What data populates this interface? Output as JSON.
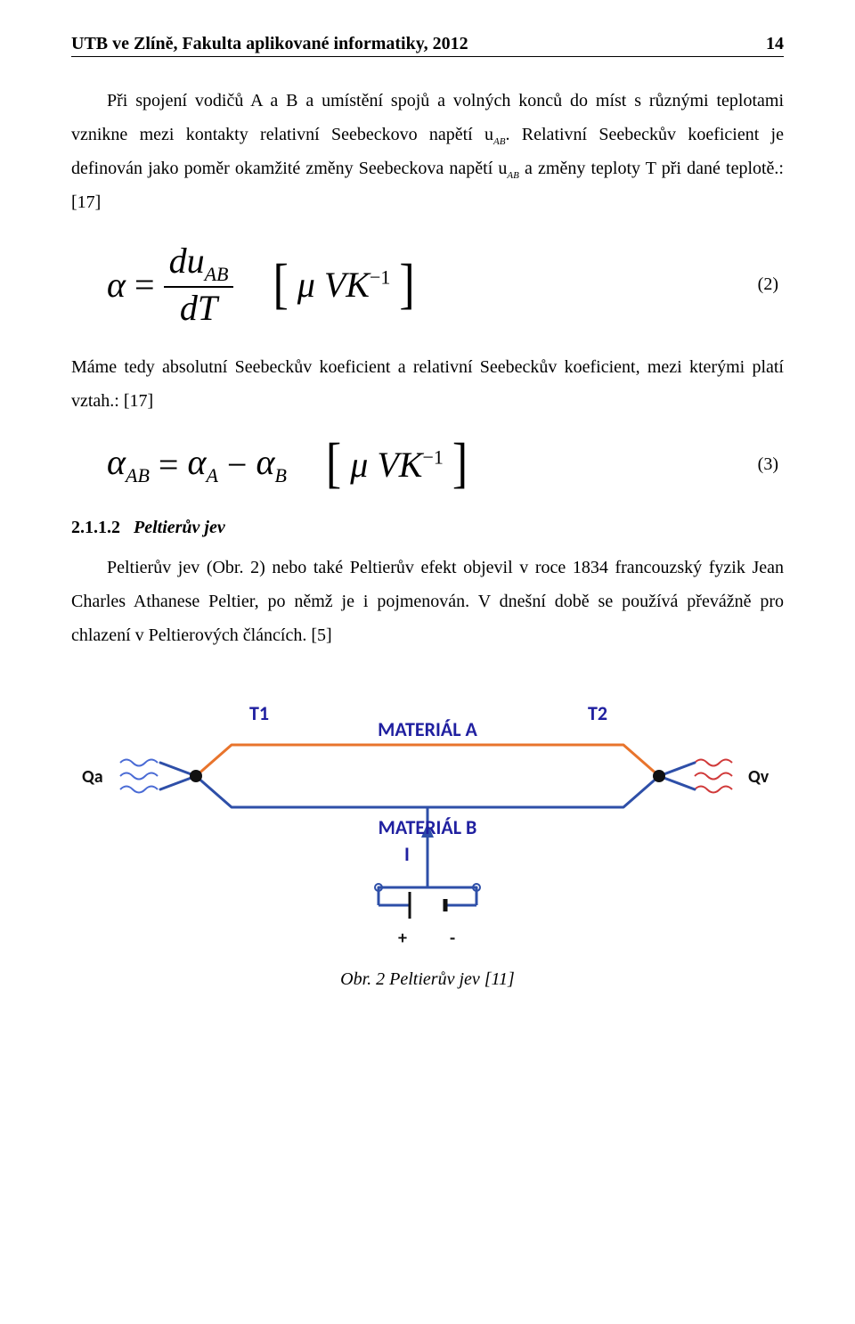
{
  "header": {
    "title": "UTB ve Zlíně, Fakulta aplikované informatiky, 2012",
    "page": "14"
  },
  "paragraphs": {
    "p1": "Při spojení vodičů A a B a umístění spojů a volných konců do míst s různými teplotami vznikne mezi kontakty relativní Seebeckovo napětí u",
    "p1_sub": "AB",
    "p1_after": ". Relativní Seebeckův koeficient je definován jako poměr okamžité změny Seebeckova napětí u",
    "p1_sub2": "AB",
    "p1_end": " a změny teploty T při dané teplotě.: [17]",
    "p2": "Máme tedy absolutní Seebeckův koeficient a relativní Seebeckův koeficient, mezi kterými platí vztah.: [17]",
    "p3": "Peltierův jev (Obr. 2) nebo také Peltierův efekt objevil v roce 1834 francouzský fyzik Jean Charles Athanese Peltier, po němž je i pojmenován. V dnešní době se používá převážně pro chlazení v Peltierových článcích. [5]"
  },
  "equations": {
    "eq2": {
      "lhs_symbol": "α",
      "eq": "=",
      "frac_num_d": "du",
      "frac_num_sub": "AB",
      "frac_den": "dT",
      "unit_mu": "μ",
      "unit_VK": "VK",
      "unit_exp": "−1",
      "number": "(2)"
    },
    "eq3": {
      "a": "α",
      "sub_ab": "AB",
      "eq": "=",
      "sub_a": "A",
      "minus": "−",
      "sub_b": "B",
      "unit_mu": "μ",
      "unit_VK": "VK",
      "unit_exp": "−1",
      "number": "(3)"
    }
  },
  "section": {
    "num": "2.1.1.2",
    "title": "Peltierův jev"
  },
  "diagram": {
    "type": "circuit-schematic",
    "caption": "Obr. 2 Peltierův jev [11]",
    "labels": {
      "T1": "T1",
      "T2": "T2",
      "matA": "MATERIÁL A",
      "matB": "MATERIÁL B",
      "Qa": "Qa",
      "Qv": "Qv",
      "I": "I",
      "plus": "+",
      "minus": "-"
    },
    "colors": {
      "wire_a": "#E8742C",
      "wire_b": "#2E4FA8",
      "wire_blue2": "#2E4FA8",
      "label_text": "#2020A0",
      "label_black": "#111111",
      "wave_blue": "#4A6BD5",
      "wave_red": "#D03A3A",
      "junction": "#111111",
      "battery": "#111111"
    },
    "stroke_width": 3,
    "label_fontsize": 22,
    "small_label_fontsize": 20
  }
}
